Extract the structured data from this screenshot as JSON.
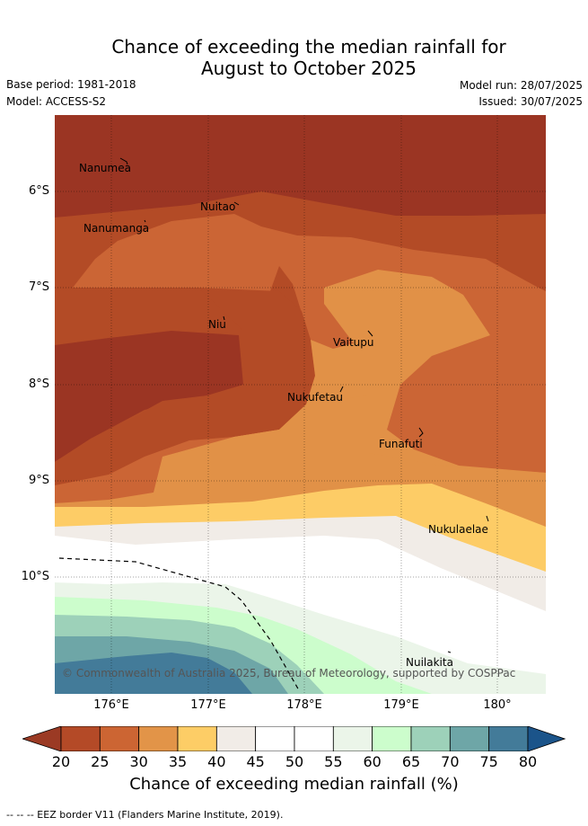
{
  "title_line1": "Chance of exceeding the median rainfall for",
  "title_line2": "August to October 2025",
  "base_period": "Base period: 1981-2018",
  "model": "Model: ACCESS-S2",
  "model_run": "Model run: 28/07/2025",
  "issued": "Issued: 30/07/2025",
  "map": {
    "y_ticks": [
      "6°S",
      "7°S",
      "8°S",
      "9°S",
      "10°S"
    ],
    "x_ticks": [
      "176°E",
      "177°E",
      "178°E",
      "179°E",
      "180°"
    ],
    "places": [
      "Nanumea",
      "Nuitao",
      "Nanumanga",
      "Niu",
      "Vaitupu",
      "Nukufetau",
      "Funafuti",
      "Nukulaelae",
      "Nuilakita"
    ],
    "copyright": "© Commonwealth of Australia 2025, Bureau of Meteorology, supported by COSPPac"
  },
  "colorbar": {
    "ticks": [
      "20",
      "25",
      "30",
      "35",
      "40",
      "45",
      "50",
      "55",
      "60",
      "65",
      "70",
      "75",
      "80"
    ],
    "colors": [
      "#b44a27",
      "#cc6533",
      "#e29448",
      "#fdcd66",
      "#f1ece7",
      "#ffffff",
      "#ffffff",
      "#ebf5e9",
      "#ccfdcc",
      "#9dd1b9",
      "#6ea6a7",
      "#437b99"
    ],
    "low_color": "#9b3a24",
    "high_color": "#1b548a",
    "title": "Chance of exceeding median rainfall (%)"
  },
  "footnote": "-- -- -- EEZ border V11 (Flanders Marine Institute, 2019)."
}
